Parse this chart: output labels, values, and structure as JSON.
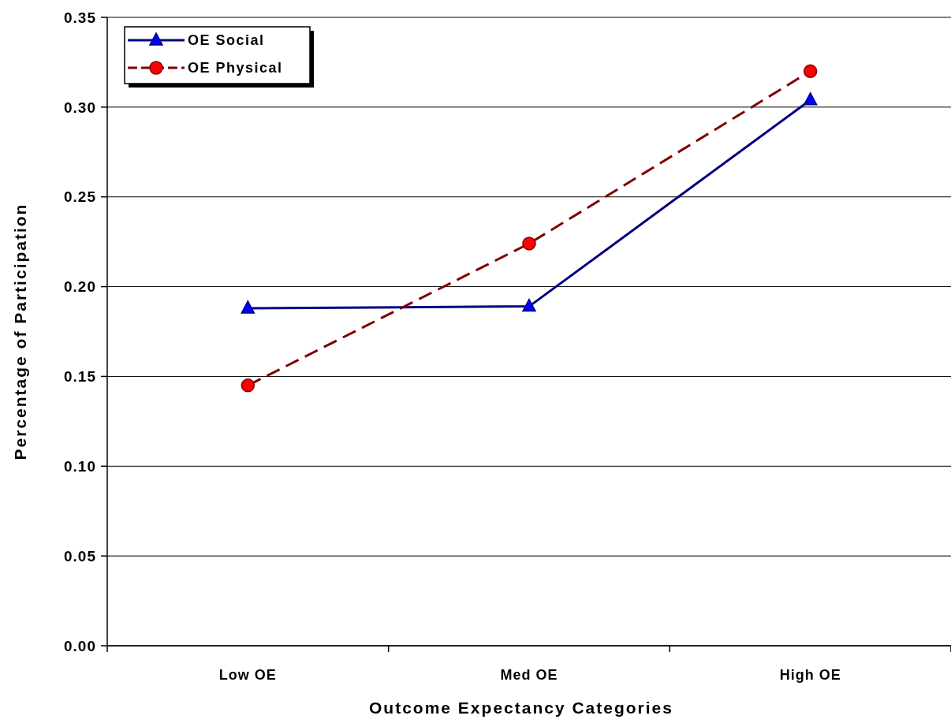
{
  "chart_data": {
    "type": "line",
    "xlabel": "Outcome Expectancy Categories",
    "ylabel": "Percentage of Participation",
    "categories": [
      "Low OE",
      "Med OE",
      "High OE"
    ],
    "series": [
      {
        "name": "OE Social",
        "color": "#000080",
        "values": [
          0.188,
          0.189,
          0.304
        ],
        "marker": "triangle",
        "line_style": "solid"
      },
      {
        "name": "OE Physical",
        "color": "#800000",
        "values": [
          0.145,
          0.224,
          0.32
        ],
        "marker": "circle",
        "line_style": "dashed"
      }
    ],
    "ylim": [
      0,
      0.35
    ],
    "yticks": [
      {
        "value": 0,
        "label": "0.00"
      },
      {
        "value": 0.05,
        "label": "0.05"
      },
      {
        "value": 0.1,
        "label": "0.10"
      },
      {
        "value": 0.15,
        "label": "0.15"
      },
      {
        "value": 0.2,
        "label": "0.20"
      },
      {
        "value": 0.25,
        "label": "0.25"
      },
      {
        "value": 0.3,
        "label": "0.30"
      },
      {
        "value": 0.35,
        "label": "0.35"
      }
    ],
    "grid": "y",
    "legend": "top left"
  }
}
